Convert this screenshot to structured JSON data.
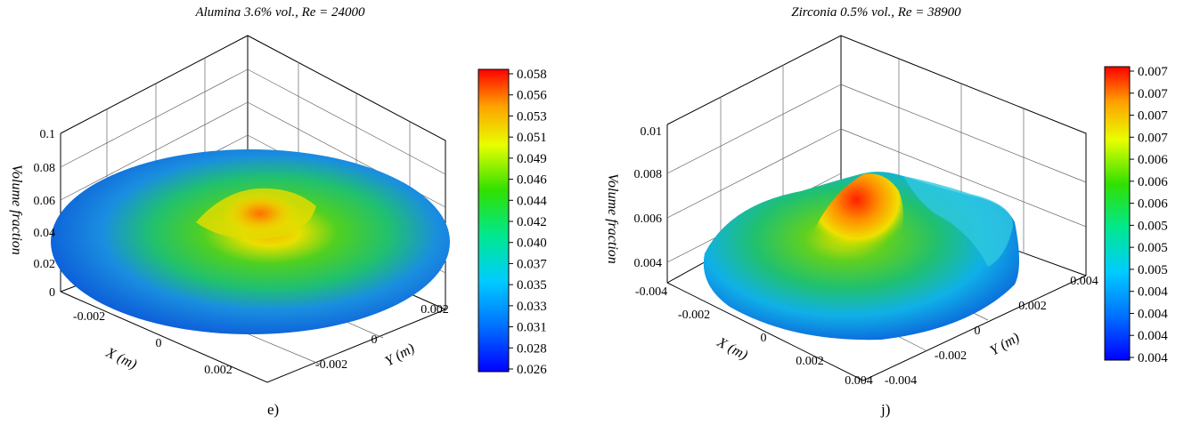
{
  "chart_data": [
    {
      "type": "surface3d",
      "panel_label": "e)",
      "title": "Alumina 3.6% vol., Re = 24000",
      "xlabel": "X (m)",
      "ylabel": "Y (m)",
      "zlabel": "Volume fraction",
      "x_ticks": [
        "-0.002",
        "0",
        "0.002"
      ],
      "y_ticks": [
        "-0.002",
        "0",
        "0.002"
      ],
      "z_ticks": [
        "0",
        "0.02",
        "0.04",
        "0.06",
        "0.08",
        "0.1"
      ],
      "zlim": [
        0,
        0.1
      ],
      "colorbar_ticks": [
        "0.058",
        "0.056",
        "0.053",
        "0.051",
        "0.049",
        "0.046",
        "0.044",
        "0.042",
        "0.040",
        "0.037",
        "0.035",
        "0.033",
        "0.031",
        "0.028",
        "0.026"
      ],
      "colorbar_range": [
        0.026,
        0.058
      ],
      "colormap": [
        "#0000ff",
        "#0070ff",
        "#00ccff",
        "#00ff80",
        "#40e000",
        "#e8ff00",
        "#ffb000",
        "#ff0000"
      ]
    },
    {
      "type": "surface3d",
      "panel_label": "j)",
      "title": "Zirconia 0.5% vol., Re = 38900",
      "xlabel": "X (m)",
      "ylabel": "Y (m)",
      "zlabel": "Volume fraction",
      "x_ticks": [
        "-0.004",
        "-0.002",
        "0",
        "0.002",
        "0.004"
      ],
      "y_ticks": [
        "-0.004",
        "-0.002",
        "0",
        "0.002",
        "0.004"
      ],
      "z_ticks": [
        "0.004",
        "0.006",
        "0.008",
        "0.01"
      ],
      "zlim": [
        0.004,
        0.01
      ],
      "colorbar_ticks": [
        "0.007",
        "0.007",
        "0.007",
        "0.007",
        "0.006",
        "0.006",
        "0.006",
        "0.005",
        "0.005",
        "0.005",
        "0.004",
        "0.004",
        "0.004",
        "0.004"
      ],
      "colorbar_range": [
        0.004,
        0.007
      ],
      "colormap": [
        "#0000ff",
        "#0070ff",
        "#00ccff",
        "#00ff80",
        "#40e000",
        "#e8ff00",
        "#ffb000",
        "#ff0000"
      ]
    }
  ]
}
